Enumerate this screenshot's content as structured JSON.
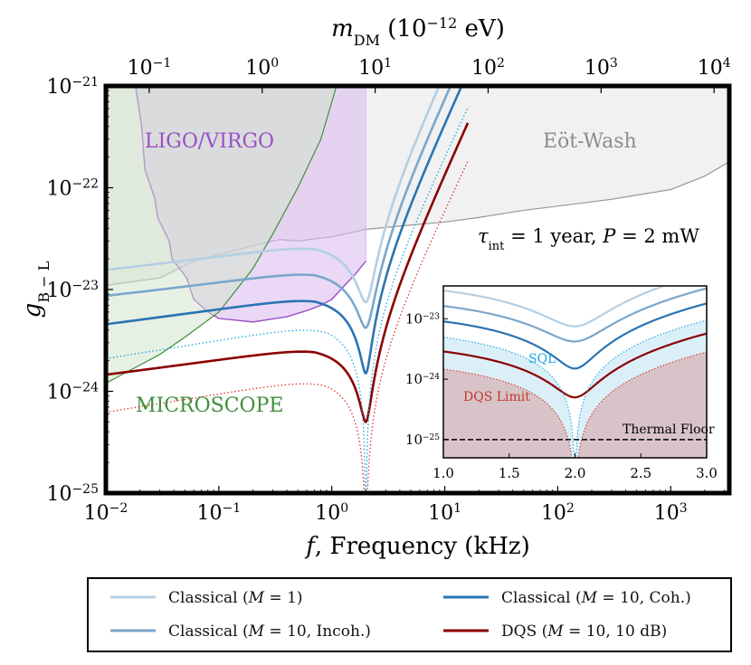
{
  "chart_data": {
    "type": "line",
    "xlabel_italic": "f",
    "xlabel": ", Frequency (kHz)",
    "ylabel": "g",
    "ylabel_sub": "B − L",
    "top_xlabel": "m",
    "top_xlabel_sub": "DM",
    "top_xlabel_unit": " (10",
    "top_xlabel_unit_exp": "−12",
    "top_xlabel_unit_end": " eV)",
    "xscale": "log",
    "yscale": "log",
    "xlim": [
      0.01,
      3300
    ],
    "ylim": [
      1e-25,
      1e-21
    ],
    "x_ticks": [
      {
        "value": 0.01,
        "base": "10",
        "exp": "-2"
      },
      {
        "value": 0.1,
        "base": "10",
        "exp": "-1"
      },
      {
        "value": 1,
        "base": "10",
        "exp": "0"
      },
      {
        "value": 10,
        "base": "10",
        "exp": "1"
      },
      {
        "value": 100,
        "base": "10",
        "exp": "2"
      },
      {
        "value": 1000,
        "base": "10",
        "exp": "3"
      }
    ],
    "y_ticks": [
      {
        "value": 1e-21,
        "base": "10",
        "exp": "-21"
      },
      {
        "value": 1e-22,
        "base": "10",
        "exp": "-22"
      },
      {
        "value": 1e-23,
        "base": "10",
        "exp": "-23"
      },
      {
        "value": 1e-24,
        "base": "10",
        "exp": "-24"
      },
      {
        "value": 1e-25,
        "base": "10",
        "exp": "-25"
      }
    ],
    "top_ticks": [
      {
        "mass": 0.1,
        "freq_khz": 0.0242,
        "base": "10",
        "exp": "-1"
      },
      {
        "mass": 1,
        "freq_khz": 0.242,
        "base": "10",
        "exp": "0"
      },
      {
        "mass": 10,
        "freq_khz": 2.42,
        "base": "10",
        "exp": "1"
      },
      {
        "mass": 100,
        "freq_khz": 24.2,
        "base": "10",
        "exp": "2"
      },
      {
        "mass": 1000,
        "freq_khz": 242,
        "base": "10",
        "exp": "3"
      },
      {
        "mass": 10000,
        "freq_khz": 2420,
        "base": "10",
        "exp": "4"
      }
    ],
    "regions": [
      {
        "name": "Eöt-Wash",
        "color": "#8c8c8c",
        "boundary": [
          [
            0.01,
            1.1e-23
          ],
          [
            0.03,
            1.3e-23
          ],
          [
            0.06,
            1.9e-23
          ],
          [
            0.1,
            2.2e-23
          ],
          [
            0.2,
            2.7e-23
          ],
          [
            0.35,
            3.1e-23
          ],
          [
            0.5,
            3e-23
          ],
          [
            1,
            3.3e-23
          ],
          [
            2,
            3.9e-23
          ],
          [
            5,
            4.3e-23
          ],
          [
            10,
            4.6e-23
          ],
          [
            20,
            5.1e-23
          ],
          [
            50,
            6e-23
          ],
          [
            100,
            6.6e-23
          ],
          [
            300,
            7.7e-23
          ],
          [
            1000,
            9.6e-23
          ],
          [
            2000,
            1.3e-22
          ],
          [
            3300,
            1.8e-22
          ]
        ]
      },
      {
        "name": "LIGO/VIRGO",
        "color": "#9b4fc8",
        "boundary": [
          [
            0.019,
            1e-21
          ],
          [
            0.02,
            4e-22
          ],
          [
            0.023,
            1.5e-22
          ],
          [
            0.026,
            8e-23
          ],
          [
            0.03,
            5e-23
          ],
          [
            0.035,
            3e-23
          ],
          [
            0.04,
            2e-23
          ],
          [
            0.05,
            1.3e-23
          ],
          [
            0.06,
            8e-24
          ],
          [
            0.08,
            6e-24
          ],
          [
            0.1,
            5.2e-24
          ],
          [
            0.2,
            4.8e-24
          ],
          [
            0.4,
            5.4e-24
          ],
          [
            0.6,
            6.2e-24
          ],
          [
            0.8,
            7e-24
          ],
          [
            1,
            8e-24
          ],
          [
            1.3,
            1.1e-23
          ],
          [
            1.6,
            1.4e-23
          ],
          [
            2.0,
            1.9e-23
          ]
        ]
      },
      {
        "name": "MICROSCOPE",
        "color": "#3f8f3a",
        "boundary": [
          [
            0.01,
            1.2e-24
          ],
          [
            0.03,
            2.3e-24
          ],
          [
            0.05,
            3.4e-24
          ],
          [
            0.1,
            6e-24
          ],
          [
            0.2,
            1.6e-23
          ],
          [
            0.3,
            3.5e-23
          ],
          [
            0.5,
            1e-22
          ],
          [
            0.8,
            3e-22
          ],
          [
            1.1,
            1e-21
          ]
        ]
      }
    ],
    "annotation": {
      "tau": "τ",
      "tau_sub": "int",
      "text_mid": " = 1 year, ",
      "p": "P",
      "text_end": " = 2 mW"
    },
    "series": [
      {
        "name": "Classical (M = 1)",
        "color": "#b4cfe3",
        "f0": 2.0,
        "level": 2.7e-23,
        "dip": 7.5e-24
      },
      {
        "name": "Classical (M = 10, Incoh.)",
        "color": "#7aa7cc",
        "f0": 2.0,
        "level": 1.5e-23,
        "dip": 4.2e-24
      },
      {
        "name": "Classical (M = 10, Coh.)",
        "color": "#2a74b3",
        "f0": 2.0,
        "level": 8.5e-24,
        "dip": 1.5e-24
      },
      {
        "name": "DQS (M = 10, 10 dB)",
        "color": "#8b0000",
        "f0": 2.0,
        "level": 2.7e-24,
        "dip": 5e-25
      },
      {
        "name": "SQL",
        "color": "#1aa7e0",
        "dotted": true,
        "f0": 2.0,
        "level": 4.7e-24
      },
      {
        "name": "DQS Limit",
        "color": "#e0342c",
        "dotted": true,
        "f0": 2.0,
        "level": 1.4e-24
      }
    ],
    "inset": {
      "xlim": [
        1.0,
        3.0
      ],
      "ylim": [
        5e-26,
        3.5e-23
      ],
      "x_ticks": [
        "1.0",
        "1.5",
        "2.0",
        "2.5",
        "3.0"
      ],
      "y_ticks": [
        {
          "value": 1e-23,
          "base": "10",
          "exp": "-23"
        },
        {
          "value": 1e-24,
          "base": "10",
          "exp": "-24"
        },
        {
          "value": 1e-25,
          "base": "10",
          "exp": "-25"
        }
      ],
      "labels": {
        "sql": "SQL",
        "dqs_limit": "DQS Limit",
        "thermal_floor": "Thermal Floor"
      },
      "thermal_floor": 1e-25
    },
    "legend": [
      {
        "label": "Classical (",
        "m": "M",
        "rest": " = 1)",
        "color": "#b4cfe3"
      },
      {
        "label": "Classical (",
        "m": "M",
        "rest": " = 10, Coh.)",
        "color": "#2a74b3"
      },
      {
        "label": "Classical (",
        "m": "M",
        "rest": " = 10, Incoh.)",
        "color": "#7aa7cc"
      },
      {
        "label": "DQS (",
        "m": "M",
        "rest": " = 10, 10 dB)",
        "color": "#8b0000"
      }
    ],
    "region_labels": {
      "ligo": "LIGO/VIRGO",
      "eot": "Eöt-Wash",
      "micro": "MICROSCOPE"
    }
  }
}
